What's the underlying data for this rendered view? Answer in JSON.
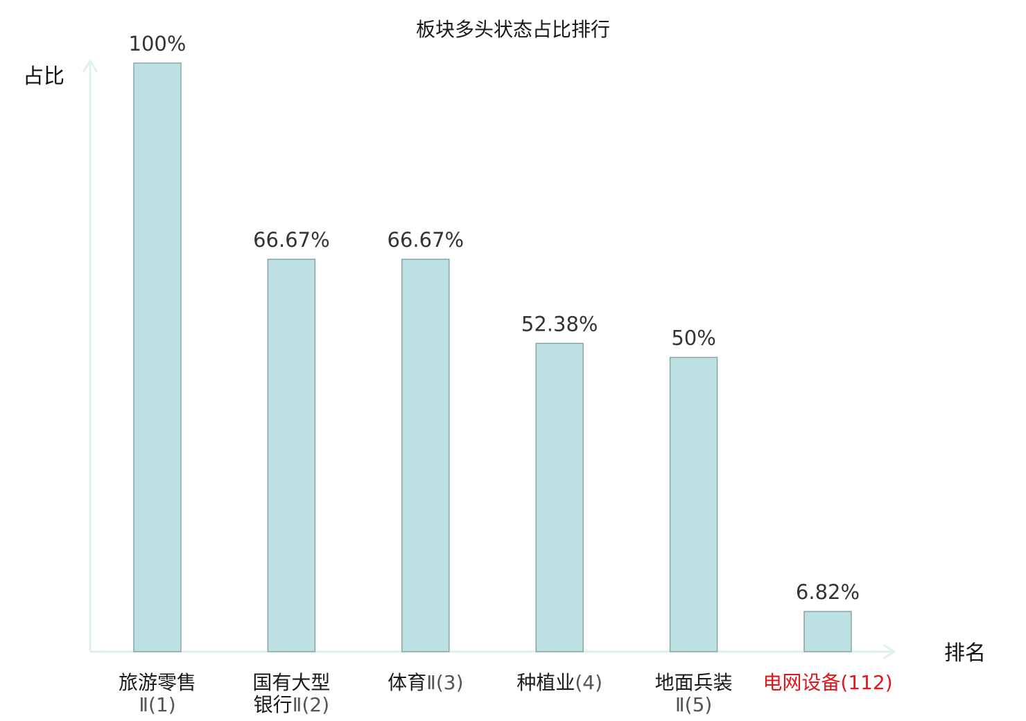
{
  "chart_data": {
    "type": "bar",
    "title": "板块多头状态占比排行",
    "ylabel": "占比",
    "xlabel": "排名",
    "ylim": [
      0,
      100
    ],
    "grid": false,
    "bar_color": "#bde0e3",
    "bar_stroke": "#86a5a8",
    "axis_color": "#dff1ee",
    "highlight_color": "#e0161b",
    "categories": [
      {
        "lines": [
          "旅游零售",
          "Ⅱ(1)"
        ],
        "highlight": false
      },
      {
        "lines": [
          "国有大型",
          "银行Ⅱ(2)"
        ],
        "highlight": false
      },
      {
        "lines": [
          "体育Ⅱ(3)"
        ],
        "highlight": false
      },
      {
        "lines": [
          "种植业(4)"
        ],
        "highlight": false
      },
      {
        "lines": [
          "地面兵装",
          "Ⅱ(5)"
        ],
        "highlight": false
      },
      {
        "lines": [
          "电网设备(112)"
        ],
        "highlight": true
      }
    ],
    "values": [
      100,
      66.67,
      66.67,
      52.38,
      50,
      6.82
    ],
    "value_labels": [
      "100%",
      "66.67%",
      "66.67%",
      "52.38%",
      "50%",
      "6.82%"
    ]
  }
}
